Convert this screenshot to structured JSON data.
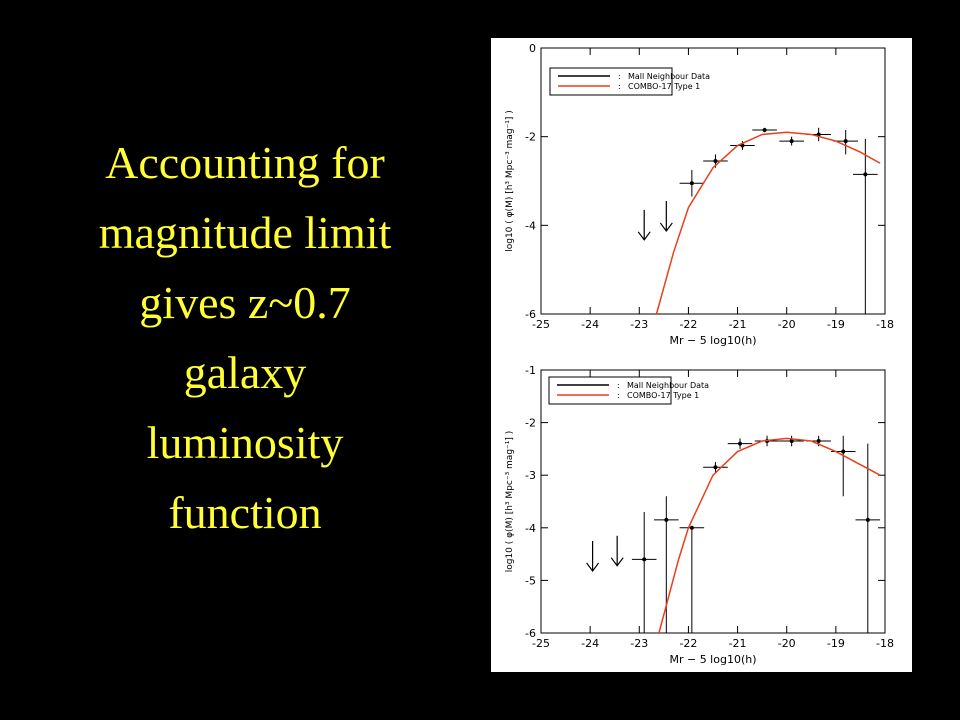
{
  "slide": {
    "text": [
      "Accounting for",
      "magnitude limit",
      "gives z~0.7",
      "galaxy",
      "luminosity",
      "function"
    ]
  },
  "chart_data": [
    {
      "type": "scatter",
      "x_label": "Mr − 5 log10(h)",
      "y_label": "log10 ( φ(M) [h³ Mpc⁻³ mag⁻¹] )",
      "xlim": [
        -25,
        -18
      ],
      "ylim": [
        -6,
        0
      ],
      "xticks": [
        -25,
        -24,
        -23,
        -22,
        -21,
        -20,
        -19,
        -18
      ],
      "yticks": [
        -6,
        -4,
        -2,
        0
      ],
      "series": [
        {
          "name": "Mall Neighbour Data",
          "type": "errorbar",
          "color": "#000000",
          "x": [
            -21.93,
            -21.45,
            -20.9,
            -20.45,
            -19.9,
            -19.35,
            -18.8,
            -18.4
          ],
          "values": [
            -3.05,
            -2.55,
            -2.2,
            -1.85,
            -2.1,
            -1.95,
            -2.1,
            -2.85
          ],
          "xerr": [
            0.25,
            0.25,
            0.25,
            0.25,
            0.25,
            0.25,
            0.25,
            0.25
          ],
          "yerr_low": [
            0.3,
            0.15,
            0.1,
            0.05,
            0.1,
            0.15,
            0.3,
            3.15
          ],
          "yerr_high": [
            0.3,
            0.15,
            0.1,
            0.05,
            0.1,
            0.15,
            0.25,
            0.8
          ],
          "upper_limits": {
            "x": [
              -22.9,
              -22.45
            ],
            "values": [
              -3.65,
              -3.45
            ]
          }
        },
        {
          "name": "COMBO-17 Type 1",
          "type": "line",
          "color": "#e8401c",
          "x": [
            -22.65,
            -22.3,
            -22,
            -21.5,
            -21,
            -20.5,
            -20,
            -19.5,
            -19,
            -18.5,
            -18.1
          ],
          "values": [
            -6,
            -4.6,
            -3.6,
            -2.7,
            -2.2,
            -1.95,
            -1.9,
            -1.95,
            -2.1,
            -2.35,
            -2.6
          ]
        }
      ]
    },
    {
      "type": "scatter",
      "x_label": "Mr − 5 log10(h)",
      "y_label": "log10 ( φ(M) [h³ Mpc⁻³ mag⁻¹] )",
      "xlim": [
        -25,
        -18
      ],
      "ylim": [
        -6,
        -1
      ],
      "xticks": [
        -25,
        -24,
        -23,
        -22,
        -21,
        -20,
        -19,
        -18
      ],
      "yticks": [
        -6,
        -5,
        -4,
        -3,
        -2,
        -1
      ],
      "series": [
        {
          "name": "Mall Neighbour Data",
          "type": "errorbar",
          "color": "#000000",
          "x": [
            -22.9,
            -22.45,
            -21.93,
            -21.45,
            -20.95,
            -20.4,
            -19.9,
            -19.35,
            -18.85,
            -18.35
          ],
          "values": [
            -4.6,
            -3.85,
            -4.0,
            -2.85,
            -2.4,
            -2.35,
            -2.35,
            -2.35,
            -2.55,
            -3.85
          ],
          "xerr": [
            0.25,
            0.25,
            0.25,
            0.25,
            0.25,
            0.25,
            0.25,
            0.25,
            0.25,
            0.25
          ],
          "yerr_low": [
            1.4,
            2.15,
            2.0,
            0.1,
            0.1,
            0.1,
            0.1,
            0.1,
            0.85,
            2.15
          ],
          "yerr_high": [
            0.9,
            0.45,
            0,
            0.1,
            0.1,
            0.1,
            0.1,
            0.1,
            0.3,
            1.45
          ],
          "upper_limits": {
            "x": [
              -23.95,
              -23.45
            ],
            "values": [
              -4.25,
              -4.15
            ]
          }
        },
        {
          "name": "COMBO-17 Type 1",
          "type": "line",
          "color": "#e8401c",
          "x": [
            -22.6,
            -22.2,
            -22,
            -21.5,
            -21,
            -20.5,
            -20,
            -19.5,
            -19,
            -18.5,
            -18.1
          ],
          "values": [
            -6,
            -4.6,
            -4.0,
            -3.0,
            -2.55,
            -2.35,
            -2.3,
            -2.35,
            -2.55,
            -2.8,
            -3.0
          ]
        }
      ]
    }
  ]
}
